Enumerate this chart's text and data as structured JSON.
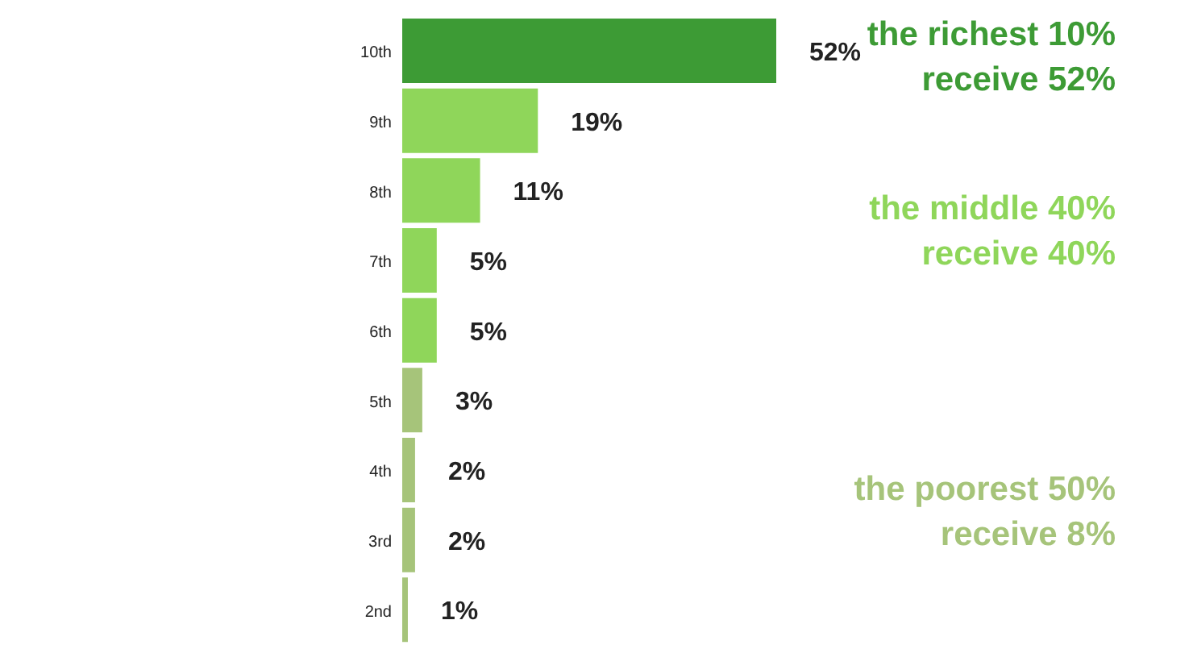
{
  "chart_data": {
    "type": "bar",
    "orientation": "horizontal",
    "categories": [
      "10th",
      "9th",
      "8th",
      "7th",
      "6th",
      "5th",
      "4th",
      "3rd",
      "2nd"
    ],
    "values": [
      52,
      19,
      11,
      5,
      5,
      3,
      2,
      2,
      1
    ],
    "colors": [
      "#3d9b35",
      "#8fd65a",
      "#8fd65a",
      "#8fd65a",
      "#8fd65a",
      "#a6c47a",
      "#a6c47a",
      "#a6c47a",
      "#a6c47a"
    ],
    "value_labels": [
      "52%",
      "19%",
      "11%",
      "5%",
      "5%",
      "3%",
      "2%",
      "2%",
      "1%"
    ],
    "tick_labels": "y",
    "annotations": [
      "the richest 10%\nreceive 52%",
      "the middle 40%\nreceive 40%",
      "the poorest 50%\nreceive 8%"
    ]
  }
}
